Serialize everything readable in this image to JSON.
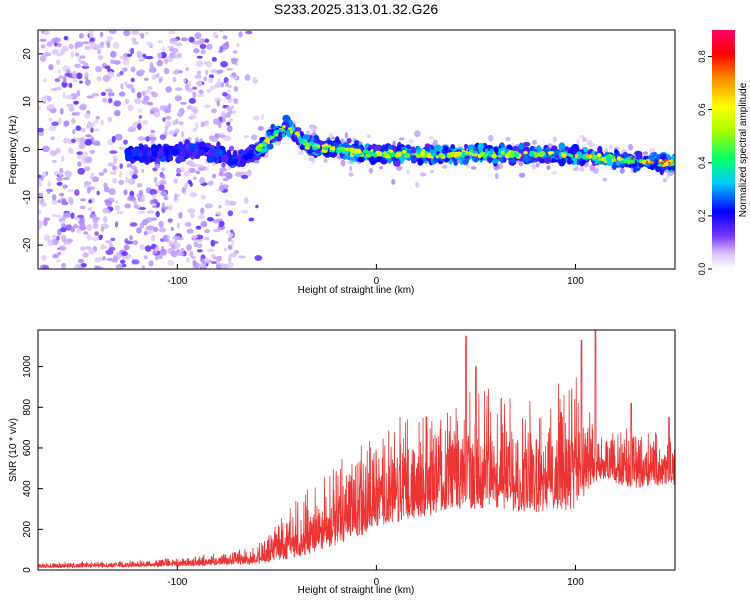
{
  "title": "S233.2025.313.01.32.G26",
  "chart_data": [
    {
      "type": "heatmap",
      "xlabel": "Height of straight line (km)",
      "ylabel": "Frequency (Hz)",
      "xlim": [
        -170,
        150
      ],
      "ylim": [
        -25,
        25
      ],
      "xticks": [
        -100,
        0,
        100
      ],
      "yticks": [
        -20,
        -10,
        0,
        10,
        20
      ],
      "ridge_track": [
        {
          "x": -115,
          "y": -1
        },
        {
          "x": -90,
          "y": 0
        },
        {
          "x": -70,
          "y": -2
        },
        {
          "x": -60,
          "y": 0
        },
        {
          "x": -45,
          "y": 5
        },
        {
          "x": -35,
          "y": 1
        },
        {
          "x": -20,
          "y": 0
        },
        {
          "x": 0,
          "y": -1
        },
        {
          "x": 30,
          "y": -1
        },
        {
          "x": 60,
          "y": -1
        },
        {
          "x": 90,
          "y": -1
        },
        {
          "x": 120,
          "y": -2
        },
        {
          "x": 150,
          "y": -3
        }
      ],
      "colorbar": {
        "label": "Normalized spectral amplitude",
        "range": [
          0.0,
          0.9
        ],
        "ticks": [
          "0.0",
          "0.2",
          "0.4",
          "0.6",
          "0.8"
        ]
      }
    },
    {
      "type": "line",
      "color": "#ee3333",
      "xlabel": "Height of straight line (km)",
      "ylabel": "SNR (10 * v/v)",
      "xlim": [
        -170,
        150
      ],
      "ylim": [
        0,
        1180
      ],
      "xticks": [
        -100,
        0,
        100
      ],
      "yticks": [
        0,
        200,
        400,
        600,
        800,
        1000
      ],
      "envelope": [
        {
          "x": -170,
          "low": 10,
          "high": 40
        },
        {
          "x": -120,
          "low": 15,
          "high": 50
        },
        {
          "x": -90,
          "low": 20,
          "high": 70
        },
        {
          "x": -60,
          "low": 30,
          "high": 120
        },
        {
          "x": -40,
          "low": 60,
          "high": 350
        },
        {
          "x": -20,
          "low": 120,
          "high": 550
        },
        {
          "x": 0,
          "low": 200,
          "high": 700
        },
        {
          "x": 20,
          "low": 250,
          "high": 850
        },
        {
          "x": 40,
          "low": 300,
          "high": 950
        },
        {
          "x": 60,
          "low": 300,
          "high": 900
        },
        {
          "x": 80,
          "low": 280,
          "high": 850
        },
        {
          "x": 100,
          "low": 300,
          "high": 1000
        },
        {
          "x": 112,
          "low": 450,
          "high": 650
        },
        {
          "x": 130,
          "low": 400,
          "high": 700
        },
        {
          "x": 150,
          "low": 420,
          "high": 650
        }
      ],
      "peaks": [
        {
          "x": 45,
          "y": 1150
        },
        {
          "x": 50,
          "y": 1000
        },
        {
          "x": 103,
          "y": 1130
        },
        {
          "x": 110,
          "y": 1180
        },
        {
          "x": 128,
          "y": 820
        },
        {
          "x": 147,
          "y": 750
        }
      ]
    }
  ]
}
